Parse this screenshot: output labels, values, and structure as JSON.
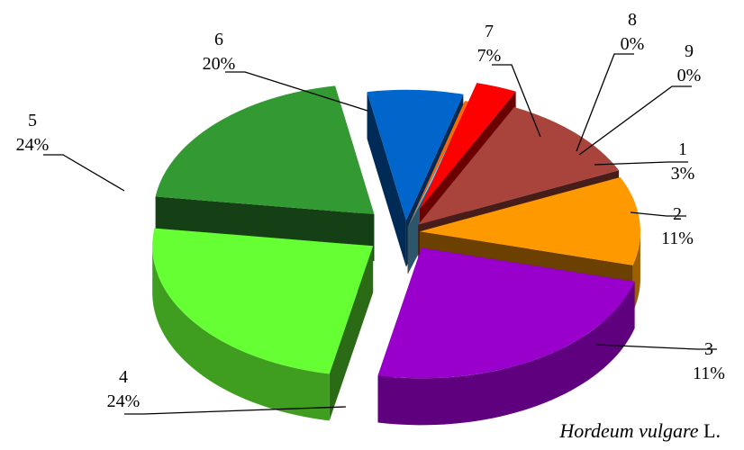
{
  "chart_data": {
    "type": "pie",
    "style": "3d-exploded",
    "slices": [
      {
        "label": "1",
        "percent_label": "3%",
        "value": 3,
        "color": "#ff0000"
      },
      {
        "label": "2",
        "percent_label": "11%",
        "value": 11,
        "color": "#a9443d"
      },
      {
        "label": "3",
        "percent_label": "11%",
        "value": 11,
        "color": "#ff9900"
      },
      {
        "label": "4",
        "percent_label": "24%",
        "value": 24,
        "color": "#9900cc"
      },
      {
        "label": "5",
        "percent_label": "24%",
        "value": 24,
        "color": "#66ff33"
      },
      {
        "label": "6",
        "percent_label": "20%",
        "value": 20,
        "color": "#339933"
      },
      {
        "label": "7",
        "percent_label": "7%",
        "value": 7,
        "color": "#0066cc"
      },
      {
        "label": "8",
        "percent_label": "0%",
        "value": 0,
        "color": "#ff6600"
      },
      {
        "label": "9",
        "percent_label": "0%",
        "value": 0,
        "color": "#66ccff"
      }
    ]
  },
  "caption": {
    "species": "Hordeum vulgare",
    "authority": "L."
  }
}
